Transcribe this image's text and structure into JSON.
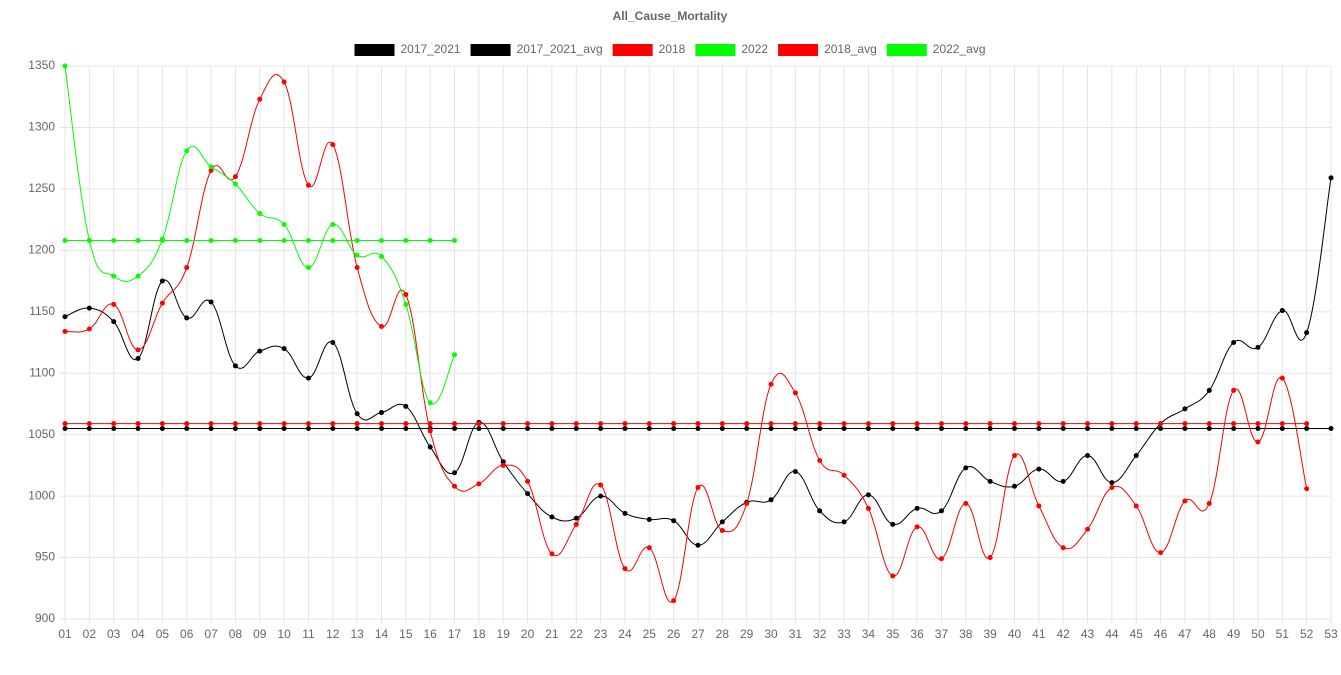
{
  "chart_data": {
    "type": "line",
    "title": "All_Cause_Mortality",
    "categories": [
      "01",
      "02",
      "03",
      "04",
      "05",
      "06",
      "07",
      "08",
      "09",
      "10",
      "11",
      "12",
      "13",
      "14",
      "15",
      "16",
      "17",
      "18",
      "19",
      "20",
      "21",
      "22",
      "23",
      "24",
      "25",
      "26",
      "27",
      "28",
      "29",
      "30",
      "31",
      "32",
      "33",
      "34",
      "35",
      "36",
      "37",
      "38",
      "39",
      "40",
      "41",
      "42",
      "43",
      "44",
      "45",
      "46",
      "47",
      "48",
      "49",
      "50",
      "51",
      "52",
      "53"
    ],
    "series": [
      {
        "name": "2017_2021",
        "color": "#000000",
        "values": [
          1146,
          1153,
          1142,
          1112,
          1175,
          1145,
          1158,
          1106,
          1118,
          1120,
          1096,
          1125,
          1067,
          1068,
          1073,
          1040,
          1019,
          1060,
          1028,
          1002,
          983,
          982,
          1000,
          986,
          981,
          980,
          960,
          979,
          995,
          997,
          1020,
          988,
          979,
          1001,
          977,
          990,
          988,
          1023,
          1012,
          1008,
          1022,
          1012,
          1033,
          1011,
          1033,
          1059,
          1071,
          1086,
          1125,
          1121,
          1151,
          1133,
          1259
        ]
      },
      {
        "name": "2017_2021_avg",
        "color": "#000000",
        "values": [
          1055,
          1055,
          1055,
          1055,
          1055,
          1055,
          1055,
          1055,
          1055,
          1055,
          1055,
          1055,
          1055,
          1055,
          1055,
          1055,
          1055,
          1055,
          1055,
          1055,
          1055,
          1055,
          1055,
          1055,
          1055,
          1055,
          1055,
          1055,
          1055,
          1055,
          1055,
          1055,
          1055,
          1055,
          1055,
          1055,
          1055,
          1055,
          1055,
          1055,
          1055,
          1055,
          1055,
          1055,
          1055,
          1055,
          1055,
          1055,
          1055,
          1055,
          1055,
          1055,
          1055
        ]
      },
      {
        "name": "2018",
        "color": "#ff0000",
        "values": [
          1134,
          1136,
          1156,
          1119,
          1157,
          1186,
          1265,
          1260,
          1323,
          1337,
          1253,
          1286,
          1186,
          1138,
          1164,
          1053,
          1008,
          1010,
          1025,
          1012,
          953,
          977,
          1009,
          941,
          958,
          915,
          1007,
          972,
          994,
          1091,
          1084,
          1029,
          1017,
          990,
          935,
          975,
          949,
          994,
          950,
          1033,
          992,
          958,
          973,
          1007,
          992,
          954,
          996,
          994,
          1086,
          1044,
          1096,
          1006,
          null
        ]
      },
      {
        "name": "2022",
        "color": "#00ff00",
        "values": [
          1350,
          1208,
          1179,
          1179,
          1209,
          1281,
          1268,
          1254,
          1230,
          1221,
          1186,
          1221,
          1196,
          1195,
          1156,
          1076,
          1115,
          null,
          null,
          null,
          null,
          null,
          null,
          null,
          null,
          null,
          null,
          null,
          null,
          null,
          null,
          null,
          null,
          null,
          null,
          null,
          null,
          null,
          null,
          null,
          null,
          null,
          null,
          null,
          null,
          null,
          null,
          null,
          null,
          null,
          null,
          null,
          null
        ]
      },
      {
        "name": "2018_avg",
        "color": "#ff0000",
        "values": [
          1059,
          1059,
          1059,
          1059,
          1059,
          1059,
          1059,
          1059,
          1059,
          1059,
          1059,
          1059,
          1059,
          1059,
          1059,
          1059,
          1059,
          1059,
          1059,
          1059,
          1059,
          1059,
          1059,
          1059,
          1059,
          1059,
          1059,
          1059,
          1059,
          1059,
          1059,
          1059,
          1059,
          1059,
          1059,
          1059,
          1059,
          1059,
          1059,
          1059,
          1059,
          1059,
          1059,
          1059,
          1059,
          1059,
          1059,
          1059,
          1059,
          1059,
          1059,
          1059,
          null
        ]
      },
      {
        "name": "2022_avg",
        "color": "#00ff00",
        "values": [
          1208,
          1208,
          1208,
          1208,
          1208,
          1208,
          1208,
          1208,
          1208,
          1208,
          1208,
          1208,
          1208,
          1208,
          1208,
          1208,
          1208,
          null,
          null,
          null,
          null,
          null,
          null,
          null,
          null,
          null,
          null,
          null,
          null,
          null,
          null,
          null,
          null,
          null,
          null,
          null,
          null,
          null,
          null,
          null,
          null,
          null,
          null,
          null,
          null,
          null,
          null,
          null,
          null,
          null,
          null,
          null,
          null
        ]
      }
    ],
    "ylim": [
      900,
      1350
    ],
    "yticks": [
      900,
      950,
      1000,
      1050,
      1100,
      1150,
      1200,
      1250,
      1300,
      1350
    ],
    "grid": true,
    "legend": "top"
  }
}
